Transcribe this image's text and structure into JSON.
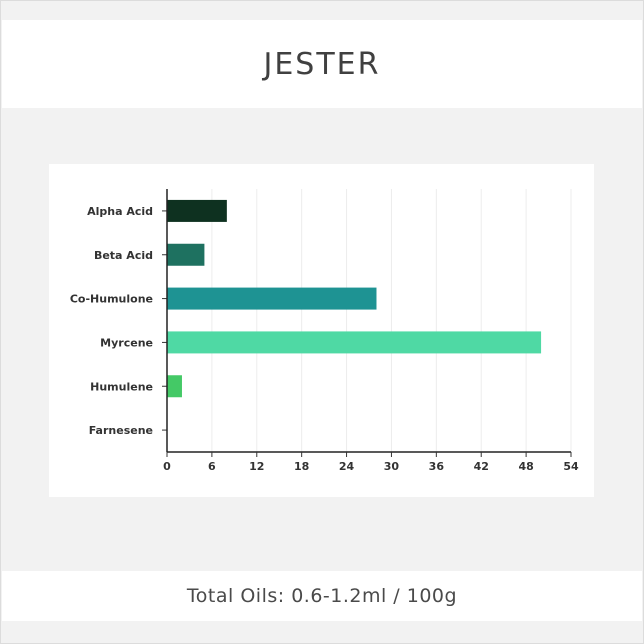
{
  "header": {
    "title": "JESTER"
  },
  "footer": {
    "total_oils": "Total Oils: 0.6-1.2ml / 100g"
  },
  "chart_data": {
    "type": "bar",
    "orientation": "horizontal",
    "categories": [
      "Alpha Acid",
      "Beta Acid",
      "Co-Humulone",
      "Myrcene",
      "Humulene",
      "Farnesene"
    ],
    "values": [
      8,
      5,
      28,
      50,
      2,
      0
    ],
    "colors": [
      "#0e3120",
      "#1e7160",
      "#1e9393",
      "#4fd9a4",
      "#44c966",
      "#44c966"
    ],
    "xlim": [
      0,
      54
    ],
    "xticks": [
      0,
      6,
      12,
      18,
      24,
      30,
      36,
      42,
      48,
      54
    ],
    "grid": true,
    "title": "",
    "xlabel": "",
    "ylabel": ""
  }
}
